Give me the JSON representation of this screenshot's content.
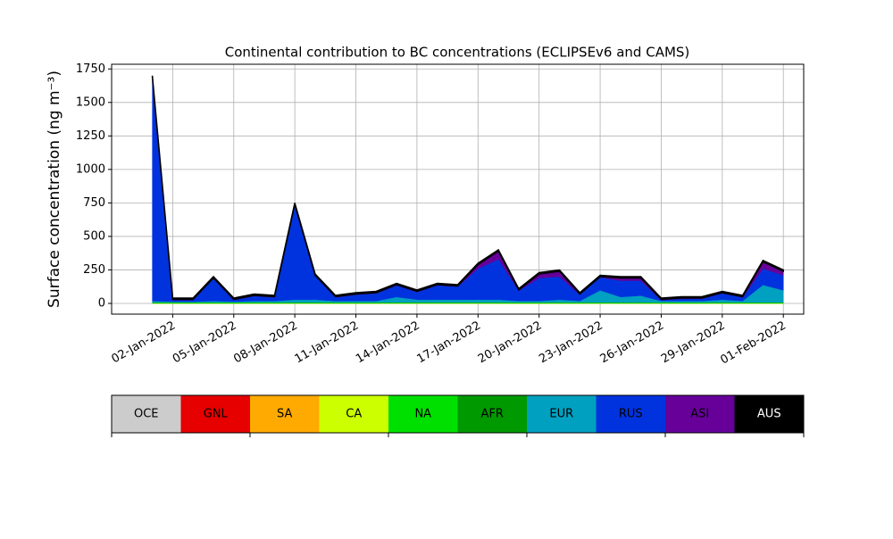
{
  "chart_data": {
    "type": "stacked_area",
    "title": "Continental contribution to BC concentrations (ECLIPSEv6 and CAMS)",
    "y_label": "Surface concentration (ng m⁻³)",
    "x": [
      "2022-01-01",
      "2022-01-02",
      "2022-01-03",
      "2022-01-04",
      "2022-01-05",
      "2022-01-06",
      "2022-01-07",
      "2022-01-08",
      "2022-01-09",
      "2022-01-10",
      "2022-01-11",
      "2022-01-12",
      "2022-01-13",
      "2022-01-14",
      "2022-01-15",
      "2022-01-16",
      "2022-01-17",
      "2022-01-18",
      "2022-01-19",
      "2022-01-20",
      "2022-01-21",
      "2022-01-22",
      "2022-01-23",
      "2022-01-24",
      "2022-01-25",
      "2022-01-26",
      "2022-01-27",
      "2022-01-28",
      "2022-01-29",
      "2022-01-30",
      "2022-01-31",
      "2022-02-01"
    ],
    "series": [
      {
        "name": "OCE",
        "color": "#cccccc",
        "values": [
          0,
          0,
          0,
          0,
          0,
          0,
          0,
          0,
          0,
          0,
          0,
          0,
          0,
          0,
          0,
          0,
          0,
          0,
          0,
          0,
          0,
          0,
          0,
          0,
          0,
          0,
          0,
          0,
          0,
          0,
          0,
          0
        ]
      },
      {
        "name": "GNL",
        "color": "#e60000",
        "values": [
          0,
          0,
          0,
          0,
          0,
          0,
          0,
          0,
          0,
          0,
          0,
          0,
          0,
          0,
          0,
          0,
          0,
          0,
          0,
          0,
          0,
          0,
          0,
          0,
          0,
          0,
          0,
          0,
          0,
          0,
          0,
          0
        ]
      },
      {
        "name": "SA",
        "color": "#ffaa00",
        "values": [
          0,
          0,
          0,
          0,
          0,
          0,
          0,
          0,
          0,
          0,
          0,
          0,
          0,
          0,
          0,
          0,
          0,
          0,
          0,
          0,
          0,
          0,
          0,
          0,
          0,
          0,
          0,
          0,
          0,
          0,
          0,
          0
        ]
      },
      {
        "name": "CA",
        "color": "#ccff00",
        "values": [
          0,
          0,
          0,
          0,
          0,
          0,
          0,
          0,
          0,
          0,
          0,
          0,
          0,
          0,
          0,
          0,
          0,
          0,
          0,
          0,
          0,
          0,
          0,
          0,
          0,
          0,
          0,
          0,
          0,
          0,
          0,
          0
        ]
      },
      {
        "name": "NA",
        "color": "#00e000",
        "values": [
          5,
          5,
          5,
          5,
          5,
          5,
          5,
          5,
          5,
          5,
          5,
          5,
          5,
          5,
          5,
          5,
          5,
          5,
          5,
          5,
          5,
          5,
          5,
          5,
          5,
          5,
          5,
          5,
          5,
          5,
          5,
          5
        ]
      },
      {
        "name": "AFR",
        "color": "#009900",
        "values": [
          3,
          3,
          3,
          3,
          3,
          3,
          3,
          3,
          3,
          3,
          3,
          3,
          3,
          3,
          3,
          3,
          3,
          3,
          3,
          3,
          3,
          3,
          3,
          3,
          3,
          3,
          3,
          3,
          3,
          3,
          3,
          3
        ]
      },
      {
        "name": "EUR",
        "color": "#00a0c0",
        "values": [
          10,
          5,
          5,
          10,
          5,
          10,
          10,
          20,
          20,
          10,
          10,
          10,
          40,
          20,
          20,
          20,
          20,
          20,
          10,
          10,
          20,
          10,
          90,
          40,
          50,
          10,
          10,
          10,
          20,
          10,
          130,
          90
        ]
      },
      {
        "name": "RUS",
        "color": "#0033dd",
        "values": [
          1667,
          12,
          12,
          167,
          12,
          37,
          27,
          707,
          177,
          27,
          47,
          57,
          87,
          57,
          107,
          97,
          232,
          302,
          77,
          172,
          172,
          47,
          97,
          122,
          112,
          7,
          17,
          17,
          47,
          27,
          122,
          112
        ]
      },
      {
        "name": "ASI",
        "color": "#660099",
        "values": [
          5,
          5,
          5,
          5,
          5,
          5,
          5,
          5,
          5,
          5,
          5,
          5,
          5,
          5,
          5,
          5,
          30,
          60,
          5,
          30,
          40,
          5,
          5,
          20,
          20,
          5,
          5,
          5,
          5,
          5,
          50,
          30
        ]
      },
      {
        "name": "AUS",
        "color": "#000000",
        "values": [
          10,
          10,
          10,
          10,
          10,
          10,
          10,
          10,
          10,
          10,
          10,
          10,
          10,
          10,
          10,
          10,
          10,
          10,
          10,
          10,
          10,
          10,
          10,
          10,
          10,
          10,
          10,
          10,
          10,
          10,
          10,
          10
        ]
      }
    ],
    "xlim": [
      "2021-12-30",
      "2022-02-02"
    ],
    "xticks": [
      {
        "value": "2022-01-02",
        "label": "02-Jan-2022"
      },
      {
        "value": "2022-01-05",
        "label": "05-Jan-2022"
      },
      {
        "value": "2022-01-08",
        "label": "08-Jan-2022"
      },
      {
        "value": "2022-01-11",
        "label": "11-Jan-2022"
      },
      {
        "value": "2022-01-14",
        "label": "14-Jan-2022"
      },
      {
        "value": "2022-01-17",
        "label": "17-Jan-2022"
      },
      {
        "value": "2022-01-20",
        "label": "20-Jan-2022"
      },
      {
        "value": "2022-01-23",
        "label": "23-Jan-2022"
      },
      {
        "value": "2022-01-26",
        "label": "26-Jan-2022"
      },
      {
        "value": "2022-01-29",
        "label": "29-Jan-2022"
      },
      {
        "value": "2022-02-01",
        "label": "01-Feb-2022"
      }
    ],
    "ylim": [
      -80,
      1785
    ],
    "yticks": [
      0,
      250,
      500,
      750,
      1000,
      1250,
      1500,
      1750
    ],
    "grid": true
  }
}
